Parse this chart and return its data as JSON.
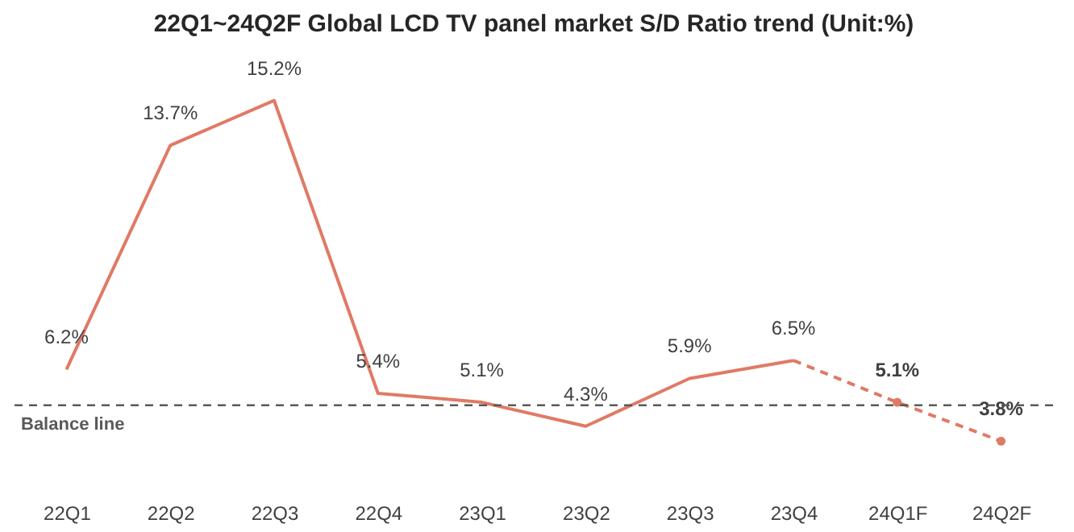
{
  "chart_data": {
    "type": "line",
    "title": "22Q1~24Q2F Global LCD TV panel market S/D Ratio trend (Unit:%)",
    "categories": [
      "22Q1",
      "22Q2",
      "22Q3",
      "22Q4",
      "23Q1",
      "23Q2",
      "23Q3",
      "23Q4",
      "24Q1F",
      "24Q2F"
    ],
    "series": [
      {
        "color": "#e07a65",
        "line_style": "solid",
        "marker": "none",
        "values": [
          6.2,
          13.7,
          15.2,
          5.4,
          5.1,
          4.3,
          5.9,
          6.5,
          null,
          null
        ],
        "value_labels": [
          "6.2%",
          "13.7%",
          "15.2%",
          "5.4%",
          "5.1%",
          "4.3%",
          "5.9%",
          "6.5%",
          null,
          null
        ]
      },
      {
        "color": "#e07a65",
        "line_style": "dashed",
        "marker": "circle",
        "values": [
          null,
          null,
          null,
          null,
          null,
          null,
          null,
          6.5,
          5.1,
          3.8
        ],
        "value_labels": [
          null,
          null,
          null,
          null,
          null,
          null,
          null,
          null,
          "5.1%",
          "3.8%"
        ]
      }
    ],
    "ref_lines": [
      {
        "axis": "y",
        "value": 5.0,
        "label": "Balance  line",
        "color": "#595959",
        "line_style": "dashed"
      }
    ],
    "grid": false,
    "tick_labels": "x"
  }
}
